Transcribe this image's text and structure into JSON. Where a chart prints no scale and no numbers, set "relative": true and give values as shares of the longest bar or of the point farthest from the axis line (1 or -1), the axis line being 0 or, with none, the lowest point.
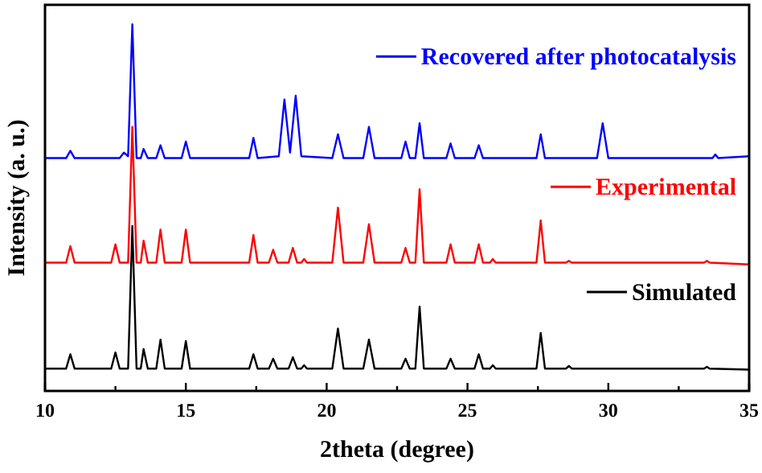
{
  "chart_data": {
    "type": "line",
    "relative": true,
    "xlabel": "2theta (degree)",
    "ylabel": "Intensity (a. u.)",
    "xlim": [
      10,
      35
    ],
    "xticks": [
      10,
      {
        "value": 12.5,
        "label": null
      },
      15,
      {
        "value": 17.5,
        "label": null
      },
      20,
      {
        "value": 22.5,
        "label": null
      },
      25,
      {
        "value": 27.5,
        "label": null
      },
      30,
      {
        "value": 32.5,
        "label": null
      },
      35
    ],
    "legend": "right",
    "grid": false,
    "series": [
      {
        "name": "Recovered after photocatalysis",
        "color": "#0000ff",
        "x": [
          10,
          10.75,
          10.9,
          11.05,
          12.65,
          12.8,
          12.95,
          13.1,
          13.25,
          13.4,
          13.5,
          13.65,
          13.95,
          14.1,
          14.25,
          14.85,
          15,
          15.15,
          17.25,
          17.4,
          17.55,
          18.3,
          18.5,
          18.7,
          18.9,
          19.1,
          20.2,
          20.4,
          20.6,
          21.3,
          21.5,
          21.7,
          22.65,
          22.8,
          22.95,
          23.15,
          23.3,
          23.45,
          24.25,
          24.4,
          24.55,
          25.25,
          25.4,
          25.55,
          27.45,
          27.6,
          27.75,
          29.6,
          29.8,
          30.0,
          33.7,
          33.8,
          33.9,
          35
        ],
        "values": [
          0.635,
          0.635,
          0.655,
          0.635,
          0.635,
          0.65,
          0.64,
          1.0,
          0.635,
          0.635,
          0.66,
          0.635,
          0.635,
          0.67,
          0.635,
          0.635,
          0.68,
          0.635,
          0.635,
          0.69,
          0.635,
          0.64,
          0.795,
          0.65,
          0.805,
          0.64,
          0.635,
          0.7,
          0.635,
          0.635,
          0.72,
          0.635,
          0.635,
          0.68,
          0.635,
          0.635,
          0.73,
          0.635,
          0.635,
          0.675,
          0.635,
          0.635,
          0.67,
          0.635,
          0.635,
          0.7,
          0.635,
          0.635,
          0.73,
          0.635,
          0.635,
          0.645,
          0.635,
          0.64
        ]
      },
      {
        "name": "Experimental",
        "color": "#ff0000",
        "x": [
          10,
          10.75,
          10.9,
          11.05,
          12.35,
          12.5,
          12.65,
          12.95,
          13.1,
          13.25,
          13.4,
          13.5,
          13.65,
          13.95,
          14.1,
          14.25,
          14.85,
          15,
          15.15,
          17.25,
          17.4,
          17.55,
          17.95,
          18.1,
          18.25,
          18.65,
          18.8,
          18.95,
          19.1,
          19.2,
          19.3,
          20.2,
          20.4,
          20.6,
          21.3,
          21.5,
          21.7,
          22.65,
          22.8,
          22.95,
          23.15,
          23.3,
          23.45,
          24.25,
          24.4,
          24.55,
          25.25,
          25.4,
          25.55,
          25.8,
          25.9,
          26.0,
          27.45,
          27.6,
          27.75,
          28.5,
          28.6,
          28.7,
          33.4,
          33.5,
          33.6,
          35
        ],
        "values": [
          0.35,
          0.35,
          0.395,
          0.35,
          0.35,
          0.4,
          0.35,
          0.35,
          0.72,
          0.35,
          0.35,
          0.41,
          0.35,
          0.35,
          0.44,
          0.35,
          0.35,
          0.44,
          0.35,
          0.35,
          0.425,
          0.35,
          0.35,
          0.385,
          0.35,
          0.35,
          0.39,
          0.35,
          0.35,
          0.36,
          0.35,
          0.35,
          0.5,
          0.35,
          0.35,
          0.455,
          0.35,
          0.35,
          0.39,
          0.35,
          0.35,
          0.55,
          0.35,
          0.35,
          0.4,
          0.35,
          0.35,
          0.4,
          0.35,
          0.35,
          0.36,
          0.35,
          0.35,
          0.465,
          0.35,
          0.35,
          0.355,
          0.35,
          0.35,
          0.355,
          0.35,
          0.345
        ]
      },
      {
        "name": "Simulated",
        "color": "#000000",
        "x": [
          10,
          10.75,
          10.9,
          11.05,
          12.35,
          12.5,
          12.65,
          12.95,
          13.1,
          13.25,
          13.4,
          13.5,
          13.65,
          13.95,
          14.1,
          14.25,
          14.85,
          15,
          15.15,
          17.25,
          17.4,
          17.55,
          17.95,
          18.1,
          18.25,
          18.65,
          18.8,
          18.95,
          19.1,
          19.2,
          19.3,
          20.2,
          20.4,
          20.6,
          21.3,
          21.5,
          21.7,
          22.65,
          22.8,
          22.95,
          23.15,
          23.3,
          23.45,
          24.25,
          24.4,
          24.55,
          25.25,
          25.4,
          25.55,
          25.8,
          25.9,
          26.0,
          27.45,
          27.6,
          27.75,
          28.5,
          28.6,
          28.7,
          33.4,
          33.5,
          33.6,
          35
        ],
        "values": [
          0.061,
          0.061,
          0.1,
          0.061,
          0.061,
          0.105,
          0.061,
          0.061,
          0.45,
          0.061,
          0.061,
          0.114,
          0.061,
          0.061,
          0.14,
          0.061,
          0.061,
          0.136,
          0.061,
          0.061,
          0.1,
          0.061,
          0.061,
          0.088,
          0.061,
          0.061,
          0.092,
          0.061,
          0.061,
          0.07,
          0.061,
          0.061,
          0.17,
          0.061,
          0.061,
          0.14,
          0.061,
          0.061,
          0.088,
          0.061,
          0.061,
          0.23,
          0.061,
          0.061,
          0.088,
          0.061,
          0.061,
          0.1,
          0.061,
          0.061,
          0.07,
          0.061,
          0.061,
          0.158,
          0.061,
          0.061,
          0.068,
          0.061,
          0.061,
          0.066,
          0.061,
          0.058
        ]
      }
    ]
  }
}
